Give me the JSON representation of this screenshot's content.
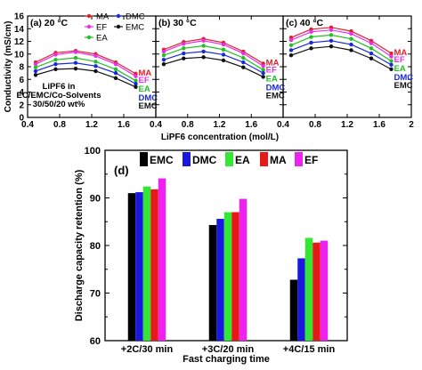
{
  "chart_data": [
    {
      "type": "line",
      "panel_label": "(a) 20 °C",
      "annotation": [
        "LiPF6 in",
        "EC/EMC/Co-Solvents",
        "30/50/20 wt%"
      ],
      "ylabel": "Conductivity (mS/cm)",
      "xlabel": "LiPF6 concentration (mol/L)",
      "xlim": [
        0.4,
        2.0
      ],
      "ylim": [
        0,
        16
      ],
      "xticks": [
        "0.4",
        "0.8",
        "1.2",
        "1.6"
      ],
      "yticks": [
        "0",
        "2",
        "4",
        "6",
        "8",
        "10",
        "12",
        "14",
        "16"
      ],
      "legend": [
        "MA",
        "DMC",
        "EF",
        "EMC",
        "EA"
      ],
      "end_labels": [
        "MA",
        "EF",
        "EA",
        "DMC",
        "EMC"
      ],
      "x": [
        0.5,
        0.75,
        1.0,
        1.25,
        1.5,
        1.75
      ],
      "series": [
        {
          "name": "MA",
          "color": "#e0202a",
          "values": [
            8.7,
            10.2,
            10.5,
            10.0,
            8.7,
            6.9
          ]
        },
        {
          "name": "EF",
          "color": "#e830e8",
          "values": [
            8.4,
            9.9,
            10.3,
            9.7,
            8.4,
            6.5
          ]
        },
        {
          "name": "EA",
          "color": "#22c022",
          "values": [
            7.9,
            9.1,
            9.4,
            8.8,
            7.6,
            5.8
          ]
        },
        {
          "name": "DMC",
          "color": "#1a2ad6",
          "values": [
            7.3,
            8.4,
            8.6,
            8.1,
            7.0,
            5.3
          ]
        },
        {
          "name": "EMC",
          "color": "#111111",
          "values": [
            6.7,
            7.6,
            7.7,
            7.3,
            6.2,
            4.8
          ]
        }
      ]
    },
    {
      "type": "line",
      "panel_label": "(b) 30 °C",
      "xlim": [
        0.4,
        2.0
      ],
      "ylim": [
        0,
        16
      ],
      "xticks": [
        "0.4",
        "0.8",
        "1.2",
        "1.6"
      ],
      "end_labels": [
        "MA",
        "EF",
        "EA",
        "DMC",
        "EMC"
      ],
      "x": [
        0.5,
        0.75,
        1.0,
        1.25,
        1.5,
        1.75
      ],
      "series": [
        {
          "name": "MA",
          "color": "#e0202a",
          "values": [
            10.7,
            11.9,
            12.4,
            11.8,
            10.4,
            8.5
          ]
        },
        {
          "name": "EF",
          "color": "#e830e8",
          "values": [
            10.4,
            11.6,
            12.1,
            11.5,
            10.1,
            8.1
          ]
        },
        {
          "name": "EA",
          "color": "#22c022",
          "values": [
            9.8,
            10.9,
            11.3,
            10.7,
            9.4,
            7.5
          ]
        },
        {
          "name": "DMC",
          "color": "#1a2ad6",
          "values": [
            9.1,
            10.1,
            10.4,
            9.9,
            8.7,
            7.0
          ]
        },
        {
          "name": "EMC",
          "color": "#111111",
          "values": [
            8.4,
            9.3,
            9.5,
            9.0,
            7.9,
            6.4
          ]
        }
      ]
    },
    {
      "type": "line",
      "panel_label": "(c) 40 °C",
      "xlim": [
        0.4,
        2.0
      ],
      "ylim": [
        0,
        16
      ],
      "xticks": [
        "0.4",
        "0.8",
        "1.2",
        "1.6",
        "2"
      ],
      "end_labels": [
        "MA",
        "EF",
        "EA",
        "DMC",
        "EMC"
      ],
      "x": [
        0.5,
        0.75,
        1.0,
        1.25,
        1.5,
        1.75
      ],
      "series": [
        {
          "name": "MA",
          "color": "#e0202a",
          "values": [
            12.6,
            13.9,
            14.2,
            13.6,
            12.1,
            10.1
          ]
        },
        {
          "name": "EF",
          "color": "#e830e8",
          "values": [
            12.2,
            13.5,
            13.8,
            13.2,
            11.7,
            9.6
          ]
        },
        {
          "name": "EA",
          "color": "#22c022",
          "values": [
            11.4,
            12.7,
            13.0,
            12.4,
            10.9,
            8.9
          ]
        },
        {
          "name": "DMC",
          "color": "#1a2ad6",
          "values": [
            10.6,
            11.8,
            12.1,
            11.5,
            10.1,
            8.3
          ]
        },
        {
          "name": "EMC",
          "color": "#111111",
          "values": [
            9.8,
            10.9,
            11.2,
            10.6,
            9.3,
            7.6
          ]
        }
      ]
    },
    {
      "type": "bar",
      "panel_label": "(d)",
      "ylabel": "Discharge capacity retention (%)",
      "xlabel": "Fast charging time",
      "ylim": [
        60,
        100
      ],
      "yticks": [
        "60",
        "70",
        "80",
        "90",
        "100"
      ],
      "categories": [
        "+2C/30 min",
        "+3C/20 min",
        "+4C/15 min"
      ],
      "series": [
        {
          "name": "EMC",
          "color": "#000000",
          "values": [
            91.0,
            84.3,
            72.8
          ]
        },
        {
          "name": "DMC",
          "color": "#1818e0",
          "values": [
            91.2,
            85.6,
            77.3
          ]
        },
        {
          "name": "EA",
          "color": "#33e833",
          "values": [
            92.4,
            87.0,
            81.6
          ]
        },
        {
          "name": "MA",
          "color": "#e81818",
          "values": [
            91.8,
            87.0,
            80.6
          ]
        },
        {
          "name": "EF",
          "color": "#ee22ee",
          "values": [
            94.1,
            89.8,
            81.0
          ]
        }
      ]
    }
  ]
}
